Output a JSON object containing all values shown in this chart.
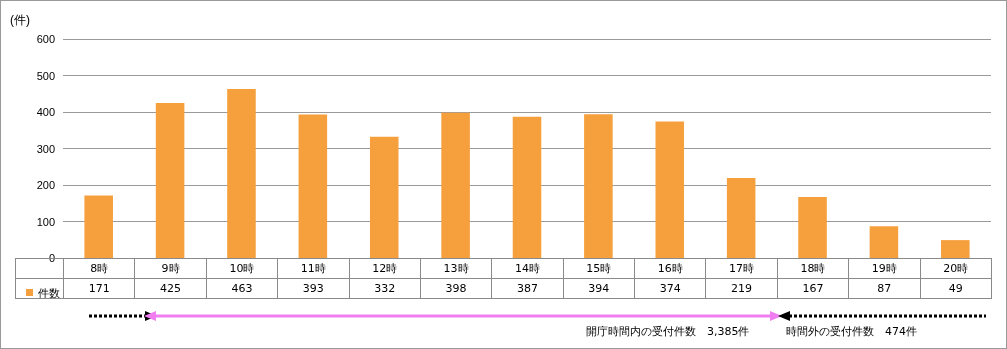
{
  "chart_data": {
    "type": "bar",
    "ylabel": "(件)",
    "categories": [
      "8時",
      "9時",
      "10時",
      "11時",
      "12時",
      "13時",
      "14時",
      "15時",
      "16時",
      "17時",
      "18時",
      "19時",
      "20時"
    ],
    "series": [
      {
        "name": "件数",
        "color": "#f5a03c",
        "values": [
          171,
          425,
          463,
          393,
          332,
          398,
          387,
          394,
          374,
          219,
          167,
          87,
          49
        ]
      }
    ],
    "ylim": [
      0,
      600
    ],
    "yticks": [
      0,
      100,
      200,
      300,
      400,
      500,
      600
    ],
    "grid": "y",
    "legend": "bottom left",
    "data_labels": true,
    "annotations": [
      "開庁時間内の受付件数　3,385件",
      "時間外の受付件数　474件"
    ]
  }
}
